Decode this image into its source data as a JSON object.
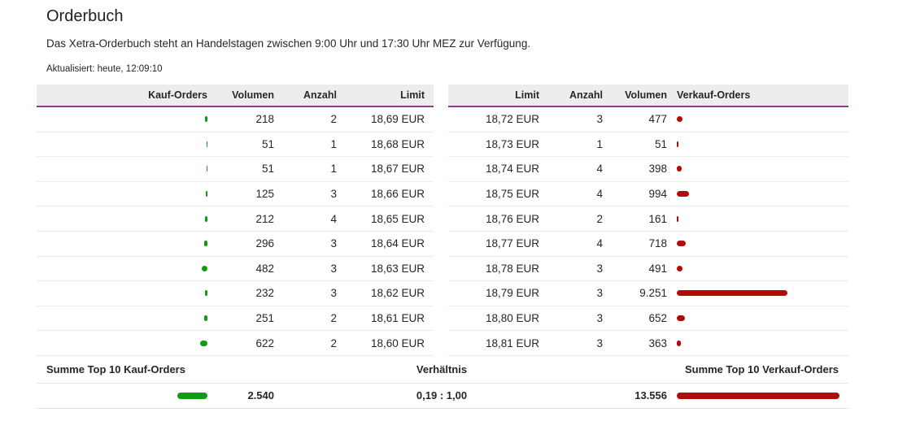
{
  "page": {
    "title": "Orderbuch",
    "description": "Das Xetra-Orderbuch steht an Handelstagen zwischen 9:00 Uhr und 17:30 Uhr MEZ zur Verfügung.",
    "updated": "Aktualisiert: heute, 12:09:10"
  },
  "buy_table": {
    "headers": [
      "Kauf-Orders",
      "Volumen",
      "Anzahl",
      "Limit"
    ],
    "rows": [
      {
        "volume": "218",
        "volume_num": 218,
        "count": "2",
        "limit": "18,69 EUR"
      },
      {
        "volume": "51",
        "volume_num": 51,
        "count": "1",
        "limit": "18,68 EUR"
      },
      {
        "volume": "51",
        "volume_num": 51,
        "count": "1",
        "limit": "18,67 EUR"
      },
      {
        "volume": "125",
        "volume_num": 125,
        "count": "3",
        "limit": "18,66 EUR"
      },
      {
        "volume": "212",
        "volume_num": 212,
        "count": "4",
        "limit": "18,65 EUR"
      },
      {
        "volume": "296",
        "volume_num": 296,
        "count": "3",
        "limit": "18,64 EUR"
      },
      {
        "volume": "482",
        "volume_num": 482,
        "count": "3",
        "limit": "18,63 EUR"
      },
      {
        "volume": "232",
        "volume_num": 232,
        "count": "3",
        "limit": "18,62 EUR"
      },
      {
        "volume": "251",
        "volume_num": 251,
        "count": "2",
        "limit": "18,61 EUR"
      },
      {
        "volume": "622",
        "volume_num": 622,
        "count": "2",
        "limit": "18,60 EUR"
      }
    ]
  },
  "sell_table": {
    "headers": [
      "Limit",
      "Anzahl",
      "Volumen",
      "Verkauf-Orders"
    ],
    "rows": [
      {
        "limit": "18,72 EUR",
        "count": "3",
        "volume": "477",
        "volume_num": 477
      },
      {
        "limit": "18,73 EUR",
        "count": "1",
        "volume": "51",
        "volume_num": 51
      },
      {
        "limit": "18,74 EUR",
        "count": "4",
        "volume": "398",
        "volume_num": 398
      },
      {
        "limit": "18,75 EUR",
        "count": "4",
        "volume": "994",
        "volume_num": 994
      },
      {
        "limit": "18,76 EUR",
        "count": "2",
        "volume": "161",
        "volume_num": 161
      },
      {
        "limit": "18,77 EUR",
        "count": "4",
        "volume": "718",
        "volume_num": 718
      },
      {
        "limit": "18,78 EUR",
        "count": "3",
        "volume": "491",
        "volume_num": 491
      },
      {
        "limit": "18,79 EUR",
        "count": "3",
        "volume": "9.251",
        "volume_num": 9251
      },
      {
        "limit": "18,80 EUR",
        "count": "3",
        "volume": "652",
        "volume_num": 652
      },
      {
        "limit": "18,81 EUR",
        "count": "3",
        "volume": "363",
        "volume_num": 363
      }
    ]
  },
  "summary": {
    "buy_label": "Summe Top 10 Kauf-Orders",
    "ratio_label": "Verhältnis",
    "sell_label": "Summe Top 10 Verkauf-Orders",
    "buy_total": "2.540",
    "buy_total_num": 2540,
    "ratio_value": "0,19 : 1,00",
    "sell_total": "13.556",
    "sell_total_num": 13556
  },
  "colors": {
    "buy_bar": "#129a12",
    "sell_bar": "#b00c0c",
    "header_border": "#8c3a8c",
    "header_bg": "#eeedee"
  }
}
